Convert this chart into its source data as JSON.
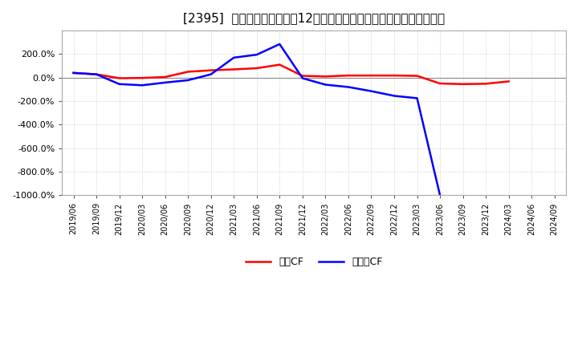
{
  "title": "[2395]  キャッシュフローの12か月移動合計の対前年同期増減率の推移",
  "title_prefix": "[2395]  ",
  "title_suffix": "キャッシュフローの12か月移動合計の対前年同期増減率の推移",
  "title_fontsize": 11,
  "background_color": "#ffffff",
  "plot_background_color": "#ffffff",
  "grid_color": "#bbbbbb",
  "legend_labels": [
    "営業CF",
    "フリーCF"
  ],
  "legend_colors": [
    "#ff0000",
    "#0000ff"
  ],
  "ylim": [
    -1000,
    400
  ],
  "yticks": [
    -1000,
    -800,
    -600,
    -400,
    -200,
    0,
    200
  ],
  "x_dates": [
    "2019/06",
    "2019/09",
    "2019/12",
    "2020/03",
    "2020/06",
    "2020/09",
    "2020/12",
    "2021/03",
    "2021/06",
    "2021/09",
    "2021/12",
    "2022/03",
    "2022/06",
    "2022/09",
    "2022/12",
    "2023/03",
    "2023/06",
    "2023/09",
    "2023/12",
    "2024/03",
    "2024/06",
    "2024/09"
  ],
  "operating_cf": [
    40,
    28,
    -5,
    -3,
    5,
    50,
    62,
    70,
    80,
    110,
    15,
    10,
    18,
    18,
    18,
    15,
    -50,
    -55,
    -52,
    -32,
    null,
    null
  ],
  "free_cf": [
    40,
    28,
    -55,
    -65,
    -42,
    -22,
    28,
    170,
    195,
    285,
    -5,
    -60,
    -80,
    -115,
    -155,
    -175,
    -1000,
    null,
    null,
    null,
    null,
    null
  ]
}
